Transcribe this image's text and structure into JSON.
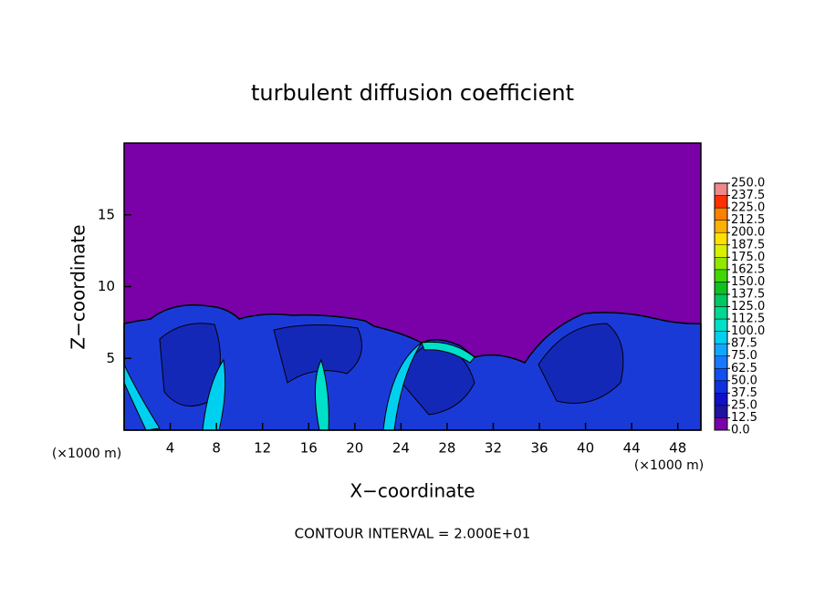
{
  "chart_data": {
    "type": "contour",
    "title": "turbulent diffusion coefficient",
    "xlabel": "X−coordinate",
    "ylabel": "Z−coordinate",
    "x_unit": "(×1000 m)",
    "y_unit": "(×1000 m)",
    "note": "CONTOUR INTERVAL = 2.000E+01",
    "xlim": [
      0,
      50
    ],
    "xticks": [
      4,
      8,
      12,
      16,
      20,
      24,
      28,
      32,
      36,
      40,
      44,
      48
    ],
    "ylim": [
      0,
      20
    ],
    "yticks": [
      5,
      10,
      15
    ],
    "colorbar": {
      "lim": [
        0,
        250
      ],
      "ticks": [
        {
          "value": 0,
          "label": "0.0"
        },
        12.5,
        {
          "value": 25,
          "label": "25.0"
        },
        37.5,
        {
          "value": 50,
          "label": "50.0"
        },
        62.5,
        {
          "value": 75,
          "label": "75.0"
        },
        87.5,
        {
          "value": 100,
          "label": "100.0"
        },
        112.5,
        {
          "value": 125,
          "label": "125.0"
        },
        137.5,
        {
          "value": 150,
          "label": "150.0"
        },
        162.5,
        {
          "value": 175,
          "label": "175.0"
        },
        187.5,
        {
          "value": 200,
          "label": "200.0"
        },
        212.5,
        {
          "value": 225,
          "label": "225.0"
        },
        237.5,
        {
          "value": 250,
          "label": "250.0"
        }
      ],
      "colors": [
        "#7a00a8",
        "#1e14a0",
        "#1010c8",
        "#1030e0",
        "#1050f0",
        "#1878ff",
        "#10a8ff",
        "#00d0f0",
        "#00e0c8",
        "#00d890",
        "#00c860",
        "#10c020",
        "#40d800",
        "#90e800",
        "#d8f000",
        "#ffe000",
        "#ffb000",
        "#ff8000",
        "#ff3000",
        "#f08888"
      ]
    }
  }
}
